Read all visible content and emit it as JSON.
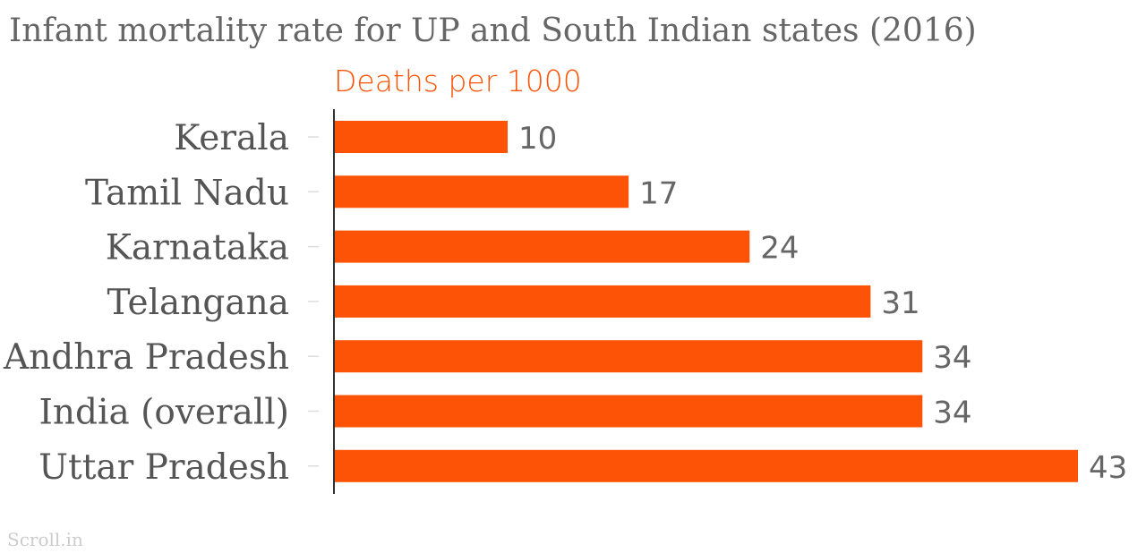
{
  "chart_data": {
    "type": "bar",
    "orientation": "horizontal",
    "title": "Infant mortality rate for UP and South Indian states (2016)",
    "subtitle": "Deaths per 1000",
    "categories": [
      "Kerala",
      "Tamil Nadu",
      "Karnataka",
      "Telangana",
      "Andhra Pradesh",
      "India (overall)",
      "Uttar Pradesh"
    ],
    "values": [
      10,
      17,
      24,
      31,
      34,
      34,
      43
    ],
    "xlim": [
      0,
      43
    ],
    "grid": false,
    "legend": "none",
    "bar_color": "#fd5307",
    "source": "Scroll.in"
  }
}
